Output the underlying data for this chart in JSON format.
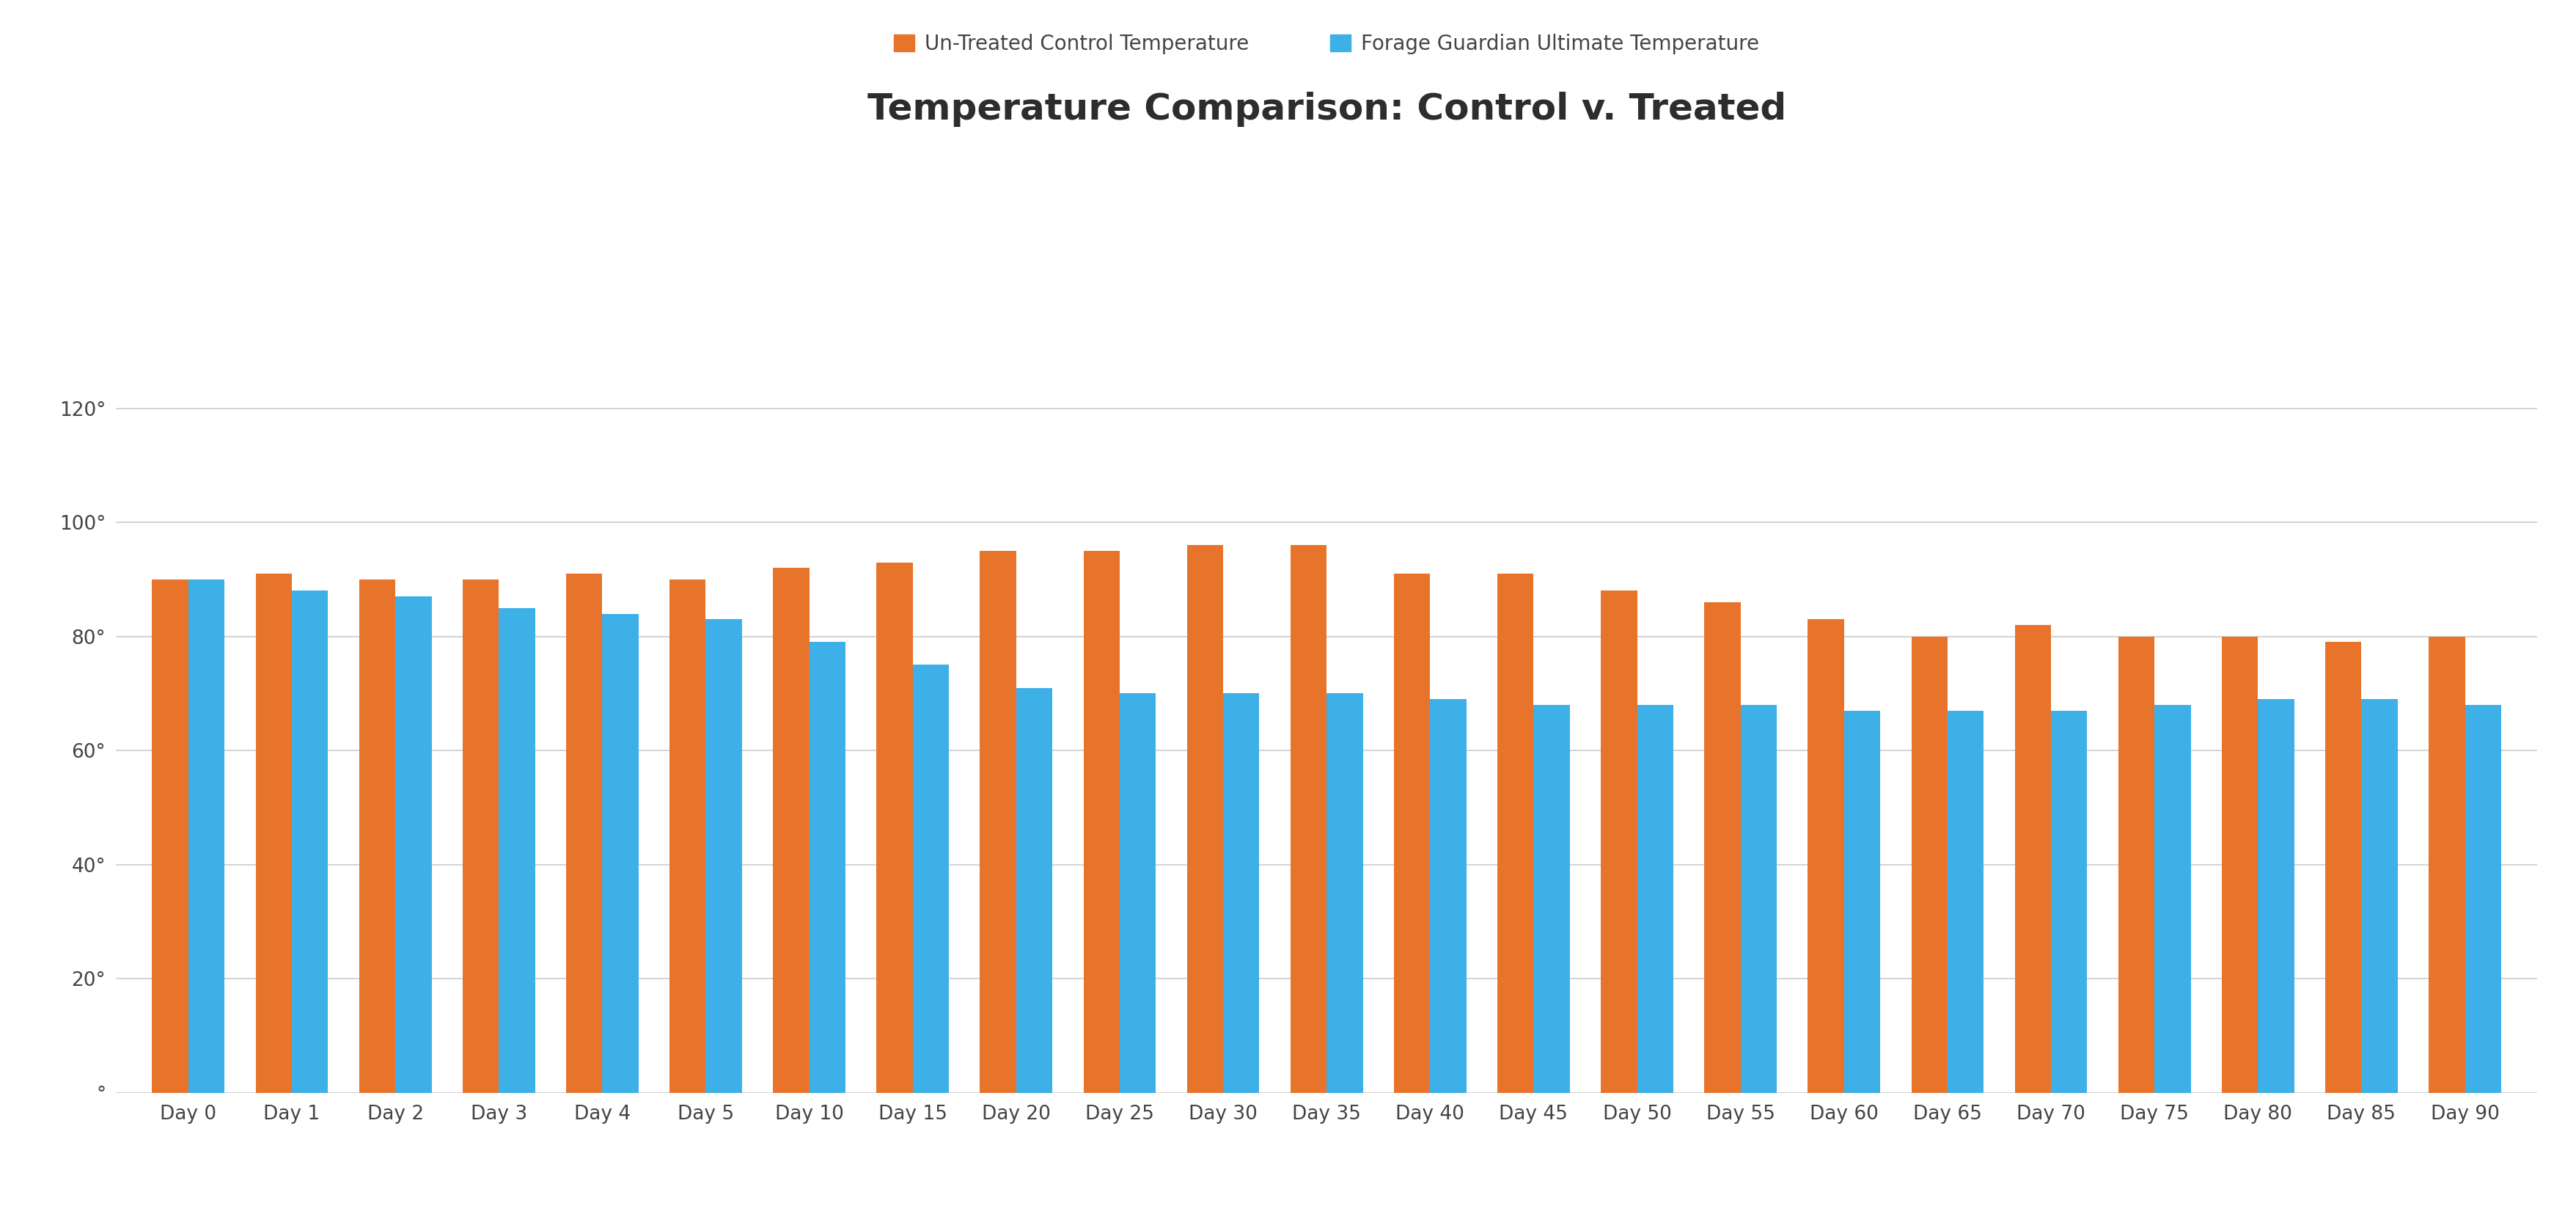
{
  "title": "Temperature Comparison: Control v. Treated",
  "categories": [
    "Day 0",
    "Day 1",
    "Day 2",
    "Day 3",
    "Day 4",
    "Day 5",
    "Day 10",
    "Day 15",
    "Day 20",
    "Day 25",
    "Day 30",
    "Day 35",
    "Day 40",
    "Day 45",
    "Day 50",
    "Day 55",
    "Day 60",
    "Day 65",
    "Day 70",
    "Day 75",
    "Day 80",
    "Day 85",
    "Day 90"
  ],
  "control_values": [
    90,
    91,
    90,
    90,
    91,
    90,
    92,
    93,
    95,
    95,
    96,
    96,
    91,
    91,
    88,
    86,
    83,
    80,
    82,
    80,
    80,
    79,
    80
  ],
  "treated_values": [
    90,
    88,
    87,
    85,
    84,
    83,
    79,
    75,
    71,
    70,
    70,
    70,
    69,
    68,
    68,
    68,
    67,
    67,
    67,
    68,
    69,
    69,
    68
  ],
  "control_color": "#E8732A",
  "treated_color": "#3EB0E8",
  "control_label": "Un-Treated Control Temperature",
  "treated_label": "Forage Guardian Ultimate Temperature",
  "title_fontsize": 36,
  "legend_fontsize": 20,
  "tick_fontsize": 19,
  "yticks": [
    0,
    20,
    40,
    60,
    80,
    100,
    120
  ],
  "ytick_labels": [
    "°",
    "20°",
    "40°",
    "60°",
    "80°",
    "100°",
    "120°"
  ],
  "ylim": [
    0,
    132
  ],
  "background_color": "#ffffff",
  "grid_color": "#cccccc",
  "bar_width": 0.35,
  "title_color": "#2d2d2d",
  "tick_color": "#444444"
}
